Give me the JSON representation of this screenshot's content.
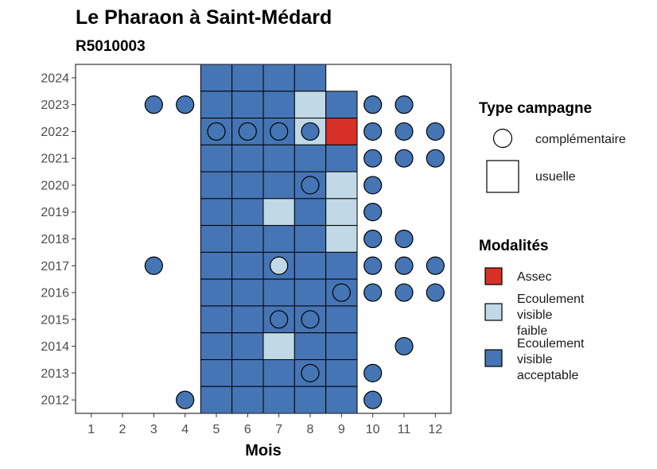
{
  "chart_data": {
    "type": "heatmap",
    "title": "Le Pharaon à Saint-Médard",
    "subtitle": "R5010003",
    "xlabel": "Mois",
    "ylabel": "",
    "x_ticks": [
      "1",
      "2",
      "3",
      "4",
      "5",
      "6",
      "7",
      "8",
      "9",
      "10",
      "11",
      "12"
    ],
    "y_ticks": [
      "2012",
      "2013",
      "2014",
      "2015",
      "2016",
      "2017",
      "2018",
      "2019",
      "2020",
      "2021",
      "2022",
      "2023",
      "2024"
    ],
    "xlim": [
      0.5,
      12.5
    ],
    "ylim": [
      2011.5,
      2024.5
    ],
    "grid": false,
    "legend_position": "right",
    "legends": {
      "type": {
        "title": "Type campagne",
        "items": [
          {
            "key": "complementaire",
            "label": "complémentaire",
            "shape": "circle"
          },
          {
            "key": "usuelle",
            "label": "usuelle",
            "shape": "square"
          }
        ]
      },
      "modalites": {
        "title": "Modalités",
        "items": [
          {
            "key": "assec",
            "lines": [
              "Assec"
            ],
            "color": "#d73027"
          },
          {
            "key": "faible",
            "lines": [
              "Ecoulement",
              "visible",
              "faible"
            ],
            "color": "#c1d9e6"
          },
          {
            "key": "acceptable",
            "lines": [
              "Ecoulement",
              "visible",
              "acceptable"
            ],
            "color": "#4575b4"
          }
        ]
      }
    },
    "usuelle": [
      {
        "year": 2024,
        "cells": [
          [
            5,
            "acceptable"
          ],
          [
            6,
            "acceptable"
          ],
          [
            7,
            "acceptable"
          ],
          [
            8,
            "acceptable"
          ]
        ]
      },
      {
        "year": 2023,
        "cells": [
          [
            5,
            "acceptable"
          ],
          [
            6,
            "acceptable"
          ],
          [
            7,
            "acceptable"
          ],
          [
            8,
            "faible"
          ],
          [
            9,
            "acceptable"
          ]
        ]
      },
      {
        "year": 2022,
        "cells": [
          [
            5,
            "acceptable"
          ],
          [
            6,
            "acceptable"
          ],
          [
            7,
            "acceptable"
          ],
          [
            8,
            "faible"
          ],
          [
            9,
            "assec"
          ]
        ]
      },
      {
        "year": 2021,
        "cells": [
          [
            5,
            "acceptable"
          ],
          [
            6,
            "acceptable"
          ],
          [
            7,
            "acceptable"
          ],
          [
            8,
            "acceptable"
          ],
          [
            9,
            "acceptable"
          ]
        ]
      },
      {
        "year": 2020,
        "cells": [
          [
            5,
            "acceptable"
          ],
          [
            6,
            "acceptable"
          ],
          [
            7,
            "acceptable"
          ],
          [
            8,
            "acceptable"
          ],
          [
            9,
            "faible"
          ]
        ]
      },
      {
        "year": 2019,
        "cells": [
          [
            5,
            "acceptable"
          ],
          [
            6,
            "acceptable"
          ],
          [
            7,
            "faible"
          ],
          [
            8,
            "acceptable"
          ],
          [
            9,
            "faible"
          ]
        ]
      },
      {
        "year": 2018,
        "cells": [
          [
            5,
            "acceptable"
          ],
          [
            6,
            "acceptable"
          ],
          [
            7,
            "acceptable"
          ],
          [
            8,
            "acceptable"
          ],
          [
            9,
            "faible"
          ]
        ]
      },
      {
        "year": 2017,
        "cells": [
          [
            5,
            "acceptable"
          ],
          [
            6,
            "acceptable"
          ],
          [
            7,
            "acceptable"
          ],
          [
            8,
            "acceptable"
          ],
          [
            9,
            "acceptable"
          ]
        ]
      },
      {
        "year": 2016,
        "cells": [
          [
            5,
            "acceptable"
          ],
          [
            6,
            "acceptable"
          ],
          [
            7,
            "acceptable"
          ],
          [
            8,
            "acceptable"
          ],
          [
            9,
            "acceptable"
          ]
        ]
      },
      {
        "year": 2015,
        "cells": [
          [
            5,
            "acceptable"
          ],
          [
            6,
            "acceptable"
          ],
          [
            7,
            "acceptable"
          ],
          [
            8,
            "acceptable"
          ],
          [
            9,
            "acceptable"
          ]
        ]
      },
      {
        "year": 2014,
        "cells": [
          [
            5,
            "acceptable"
          ],
          [
            6,
            "acceptable"
          ],
          [
            7,
            "faible"
          ],
          [
            8,
            "acceptable"
          ],
          [
            9,
            "acceptable"
          ]
        ]
      },
      {
        "year": 2013,
        "cells": [
          [
            5,
            "acceptable"
          ],
          [
            6,
            "acceptable"
          ],
          [
            7,
            "acceptable"
          ],
          [
            8,
            "acceptable"
          ],
          [
            9,
            "acceptable"
          ]
        ]
      },
      {
        "year": 2012,
        "cells": [
          [
            5,
            "acceptable"
          ],
          [
            6,
            "acceptable"
          ],
          [
            7,
            "acceptable"
          ],
          [
            8,
            "acceptable"
          ],
          [
            9,
            "acceptable"
          ]
        ]
      }
    ],
    "complementaire": [
      {
        "year": 2023,
        "cells": [
          [
            3,
            "acceptable"
          ],
          [
            4,
            "acceptable"
          ],
          [
            10,
            "acceptable"
          ],
          [
            11,
            "acceptable"
          ]
        ]
      },
      {
        "year": 2022,
        "cells": [
          [
            5,
            "acceptable"
          ],
          [
            6,
            "acceptable"
          ],
          [
            7,
            "acceptable"
          ],
          [
            8,
            "acceptable"
          ],
          [
            10,
            "acceptable"
          ],
          [
            11,
            "acceptable"
          ],
          [
            12,
            "acceptable"
          ]
        ]
      },
      {
        "year": 2021,
        "cells": [
          [
            10,
            "acceptable"
          ],
          [
            11,
            "acceptable"
          ],
          [
            12,
            "acceptable"
          ]
        ]
      },
      {
        "year": 2020,
        "cells": [
          [
            8,
            "acceptable"
          ],
          [
            10,
            "acceptable"
          ]
        ]
      },
      {
        "year": 2019,
        "cells": [
          [
            10,
            "acceptable"
          ]
        ]
      },
      {
        "year": 2018,
        "cells": [
          [
            10,
            "acceptable"
          ],
          [
            11,
            "acceptable"
          ]
        ]
      },
      {
        "year": 2017,
        "cells": [
          [
            3,
            "acceptable"
          ],
          [
            7,
            "faible"
          ],
          [
            10,
            "acceptable"
          ],
          [
            11,
            "acceptable"
          ],
          [
            12,
            "acceptable"
          ]
        ]
      },
      {
        "year": 2016,
        "cells": [
          [
            9,
            "acceptable"
          ],
          [
            10,
            "acceptable"
          ],
          [
            11,
            "acceptable"
          ],
          [
            12,
            "acceptable"
          ]
        ]
      },
      {
        "year": 2015,
        "cells": [
          [
            7,
            "acceptable"
          ],
          [
            8,
            "acceptable"
          ]
        ]
      },
      {
        "year": 2014,
        "cells": [
          [
            11,
            "acceptable"
          ]
        ]
      },
      {
        "year": 2013,
        "cells": [
          [
            8,
            "acceptable"
          ],
          [
            10,
            "acceptable"
          ]
        ]
      },
      {
        "year": 2012,
        "cells": [
          [
            4,
            "acceptable"
          ],
          [
            10,
            "acceptable"
          ]
        ]
      }
    ]
  }
}
